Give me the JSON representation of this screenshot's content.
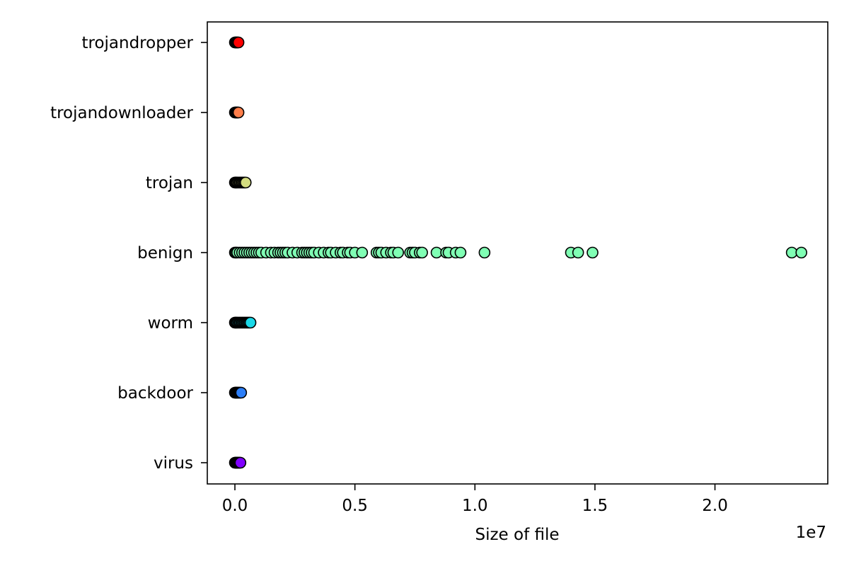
{
  "chart_data": {
    "type": "scatter",
    "title": "",
    "xlabel": "Size of file",
    "ylabel": "",
    "x_offset_label": "1e7",
    "x_scale": 10000000,
    "xlim": [
      -1150000,
      24700000
    ],
    "x_ticks": [
      0,
      5000000,
      10000000,
      15000000,
      20000000
    ],
    "x_tick_labels": [
      "0.0",
      "0.5",
      "1.0",
      "1.5",
      "2.0"
    ],
    "categories": [
      "virus",
      "backdoor",
      "worm",
      "benign",
      "trojan",
      "trojandownloader",
      "trojandropper"
    ],
    "grid": false,
    "legend": "none",
    "marker_edge_color": "#000000",
    "series": [
      {
        "category": "virus",
        "color": "#8000ff",
        "x": [
          0,
          20000,
          40000,
          60000,
          80000,
          100000,
          120000,
          150000,
          180000,
          200000,
          230000
        ]
      },
      {
        "category": "backdoor",
        "color": "#2c7ef7",
        "x": [
          0,
          20000,
          40000,
          60000,
          80000,
          100000,
          130000,
          160000,
          190000,
          220000,
          260000
        ]
      },
      {
        "category": "worm",
        "color": "#1ad8e8",
        "x": [
          0,
          30000,
          60000,
          100000,
          150000,
          200000,
          250000,
          300000,
          350000,
          400000,
          450000,
          500000,
          550000,
          600000,
          650000
        ]
      },
      {
        "category": "benign",
        "color": "#80ffb4",
        "x": [
          0,
          50000,
          100000,
          200000,
          300000,
          400000,
          500000,
          600000,
          700000,
          800000,
          900000,
          1000000,
          1100000,
          1300000,
          1500000,
          1650000,
          1800000,
          1900000,
          2000000,
          2100000,
          2200000,
          2400000,
          2600000,
          2800000,
          2900000,
          3000000,
          3100000,
          3200000,
          3300000,
          3500000,
          3700000,
          3900000,
          4000000,
          4200000,
          4400000,
          4500000,
          4700000,
          4800000,
          5000000,
          5300000,
          5900000,
          6000000,
          6100000,
          6300000,
          6500000,
          6600000,
          6800000,
          7300000,
          7400000,
          7500000,
          7700000,
          7800000,
          8400000,
          8800000,
          8900000,
          9200000,
          9400000,
          10400000,
          14000000,
          14300000,
          14900000,
          23200000,
          23600000
        ]
      },
      {
        "category": "trojan",
        "color": "#d4dd80",
        "x": [
          0,
          30000,
          60000,
          100000,
          150000,
          200000,
          250000,
          300000,
          350000,
          400000,
          450000
        ]
      },
      {
        "category": "trojandownloader",
        "color": "#ff7e4a",
        "x": [
          0,
          20000,
          40000,
          60000,
          80000,
          100000,
          120000,
          150000
        ]
      },
      {
        "category": "trojandropper",
        "color": "#ff0000",
        "x": [
          0,
          20000,
          40000,
          60000,
          80000,
          100000,
          120000,
          150000
        ]
      }
    ]
  }
}
